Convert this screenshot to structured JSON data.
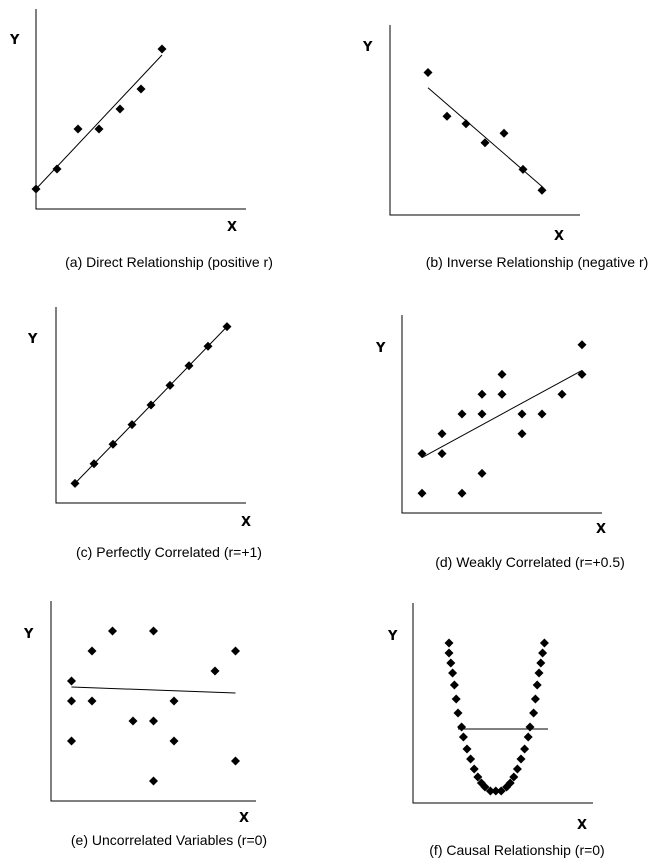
{
  "chart_data": [
    {
      "type": "scatter",
      "xlabel": "X",
      "ylabel": "Y",
      "caption": "(a) Direct Relationship (positive r)",
      "xlim": [
        0,
        10
      ],
      "ylim": [
        0,
        10
      ],
      "points": [
        [
          0.0,
          1.0
        ],
        [
          1.0,
          2.0
        ],
        [
          2.0,
          4.0
        ],
        [
          3.0,
          4.0
        ],
        [
          4.0,
          5.0
        ],
        [
          5.0,
          6.0
        ],
        [
          6.0,
          8.0
        ]
      ],
      "trend": [
        [
          0.0,
          1.0
        ],
        [
          6.0,
          7.7
        ]
      ]
    },
    {
      "type": "scatter",
      "xlabel": "X",
      "ylabel": "Y",
      "caption": "(b) Inverse Relationship (negative r)",
      "xlim": [
        0,
        10
      ],
      "ylim": [
        0,
        10
      ],
      "points": [
        [
          2.0,
          7.5
        ],
        [
          3.0,
          5.2
        ],
        [
          4.0,
          4.8
        ],
        [
          5.0,
          3.8
        ],
        [
          6.0,
          4.3
        ],
        [
          7.0,
          2.4
        ],
        [
          8.0,
          1.3
        ]
      ],
      "trend": [
        [
          2.0,
          6.7
        ],
        [
          8.0,
          1.5
        ]
      ]
    },
    {
      "type": "scatter",
      "xlabel": "X",
      "ylabel": "Y",
      "caption": "(c) Perfectly Correlated (r=+1)",
      "xlim": [
        0,
        10
      ],
      "ylim": [
        0,
        10
      ],
      "points": [
        [
          1.0,
          1.0
        ],
        [
          2.0,
          2.0
        ],
        [
          3.0,
          3.0
        ],
        [
          4.0,
          4.0
        ],
        [
          5.0,
          5.0
        ],
        [
          6.0,
          6.0
        ],
        [
          7.0,
          7.0
        ],
        [
          8.0,
          8.0
        ],
        [
          9.0,
          9.0
        ]
      ],
      "trend": [
        [
          1.0,
          1.0
        ],
        [
          9.0,
          9.0
        ]
      ]
    },
    {
      "type": "scatter",
      "xlabel": "X",
      "ylabel": "Y",
      "caption": "(d) Weakly Correlated (r=+0.5)",
      "xlim": [
        0,
        10
      ],
      "ylim": [
        0,
        10
      ],
      "points": [
        [
          1.0,
          1.0
        ],
        [
          1.0,
          3.0
        ],
        [
          2.0,
          3.0
        ],
        [
          2.0,
          4.0
        ],
        [
          3.0,
          1.0
        ],
        [
          3.0,
          5.0
        ],
        [
          4.0,
          2.0
        ],
        [
          4.0,
          5.0
        ],
        [
          4.0,
          6.0
        ],
        [
          5.0,
          6.0
        ],
        [
          5.0,
          7.0
        ],
        [
          6.0,
          4.0
        ],
        [
          6.0,
          5.0
        ],
        [
          7.0,
          5.0
        ],
        [
          8.0,
          6.0
        ],
        [
          9.0,
          7.0
        ],
        [
          9.0,
          8.5
        ]
      ],
      "trend": [
        [
          1.0,
          2.8
        ],
        [
          9.0,
          7.2
        ]
      ]
    },
    {
      "type": "scatter",
      "xlabel": "X",
      "ylabel": "Y",
      "caption": "(e) Uncorrelated Variables (r=0)",
      "xlim": [
        0,
        10
      ],
      "ylim": [
        0,
        10
      ],
      "points": [
        [
          1.0,
          6.0
        ],
        [
          1.0,
          5.0
        ],
        [
          1.0,
          3.0
        ],
        [
          2.0,
          7.5
        ],
        [
          2.0,
          5.0
        ],
        [
          3.0,
          8.5
        ],
        [
          4.0,
          4.0
        ],
        [
          5.0,
          8.5
        ],
        [
          5.0,
          4.0
        ],
        [
          5.0,
          1.0
        ],
        [
          6.0,
          5.0
        ],
        [
          6.0,
          3.0
        ],
        [
          8.0,
          6.5
        ],
        [
          9.0,
          7.5
        ],
        [
          9.0,
          2.0
        ]
      ],
      "trend": [
        [
          1.0,
          5.7
        ],
        [
          9.0,
          5.4
        ]
      ]
    },
    {
      "type": "scatter",
      "xlabel": "X",
      "ylabel": "Y",
      "caption": "(f) Causal Relationship (r=0)",
      "xlim": [
        0,
        10
      ],
      "ylim": [
        0,
        10
      ],
      "points": [
        [
          2.0,
          8.0
        ],
        [
          2.0,
          7.5
        ],
        [
          2.1,
          7.0
        ],
        [
          2.2,
          6.5
        ],
        [
          2.3,
          5.9
        ],
        [
          2.4,
          5.2
        ],
        [
          2.5,
          4.5
        ],
        [
          2.7,
          3.8
        ],
        [
          2.8,
          3.3
        ],
        [
          3.0,
          2.7
        ],
        [
          3.2,
          2.2
        ],
        [
          3.4,
          1.7
        ],
        [
          3.6,
          1.3
        ],
        [
          3.8,
          1.0
        ],
        [
          4.0,
          0.8
        ],
        [
          4.3,
          0.6
        ],
        [
          4.6,
          0.6
        ],
        [
          4.9,
          0.6
        ],
        [
          5.2,
          0.8
        ],
        [
          5.4,
          1.0
        ],
        [
          5.6,
          1.3
        ],
        [
          5.8,
          1.7
        ],
        [
          6.0,
          2.2
        ],
        [
          6.2,
          2.7
        ],
        [
          6.4,
          3.3
        ],
        [
          6.5,
          3.8
        ],
        [
          6.7,
          4.5
        ],
        [
          6.8,
          5.2
        ],
        [
          6.9,
          5.9
        ],
        [
          7.0,
          6.5
        ],
        [
          7.1,
          7.0
        ],
        [
          7.2,
          7.5
        ],
        [
          7.3,
          8.0
        ]
      ],
      "trend": [
        [
          2.5,
          3.7
        ],
        [
          7.5,
          3.7
        ]
      ]
    }
  ]
}
